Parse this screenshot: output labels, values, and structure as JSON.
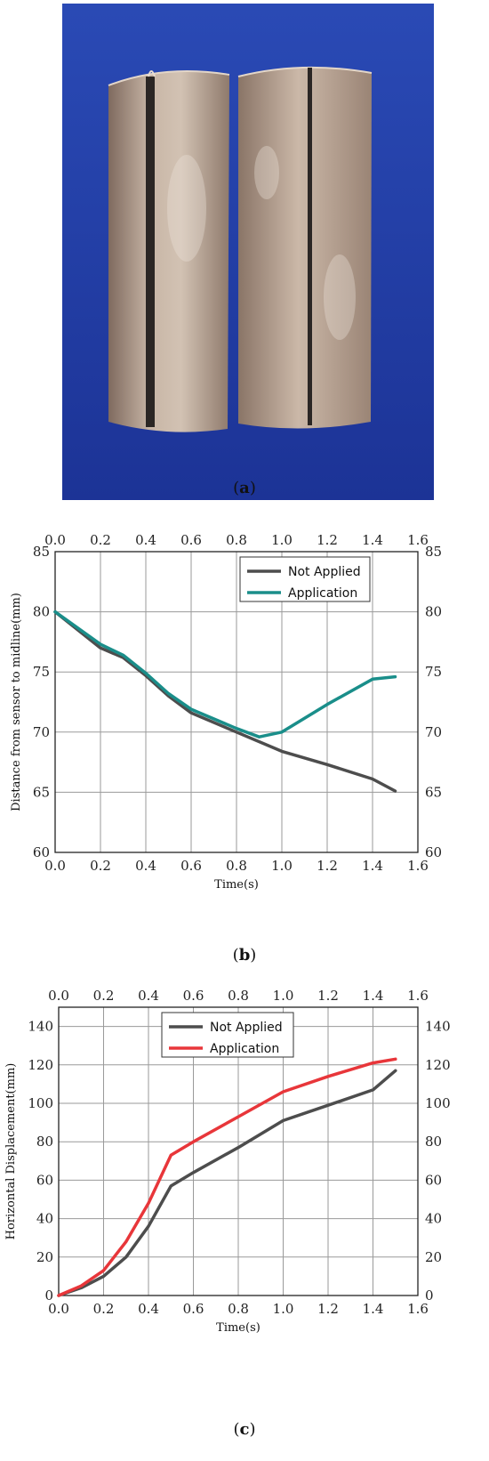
{
  "panels": {
    "a": {
      "caption_open": "(",
      "caption_letter": "a",
      "caption_close": ")"
    },
    "b": {
      "caption_open": "(",
      "caption_letter": "b",
      "caption_close": ")"
    },
    "c": {
      "caption_open": "(",
      "caption_letter": "c",
      "caption_close": ")"
    }
  },
  "colors": {
    "background_blue": "#1f3aa0",
    "pipe_metal": "#b9a596",
    "not_applied": "#4d4d4d",
    "application_b": "#1a8e8a",
    "application_c": "#e8363a"
  },
  "chart_data": [
    {
      "type": "line",
      "title": "",
      "xlabel": "Time(s)",
      "ylabel": "Distance from sensor to midline(mm)",
      "xlim": [
        0,
        1.6
      ],
      "ylim": [
        60,
        85
      ],
      "x_ticks": [
        "0.0",
        "0.2",
        "0.4",
        "0.6",
        "0.8",
        "1.0",
        "1.2",
        "1.4",
        "1.6"
      ],
      "y_ticks": [
        "60",
        "65",
        "70",
        "75",
        "80",
        "85"
      ],
      "grid": true,
      "legend_position": "top-right",
      "series": [
        {
          "name": "Not Applied",
          "color": "#4d4d4d",
          "x": [
            0,
            0.2,
            0.3,
            0.4,
            0.5,
            0.6,
            0.8,
            1.0,
            1.2,
            1.4,
            1.5
          ],
          "y": [
            80,
            77,
            76.2,
            74.7,
            73,
            71.6,
            70,
            68.4,
            67.3,
            66.1,
            65.1
          ]
        },
        {
          "name": "Application",
          "color": "#1a8e8a",
          "x": [
            0,
            0.2,
            0.3,
            0.4,
            0.5,
            0.6,
            0.8,
            0.9,
            1.0,
            1.2,
            1.4,
            1.5
          ],
          "y": [
            80,
            77.3,
            76.4,
            74.9,
            73.2,
            71.9,
            70.3,
            69.6,
            70,
            72.3,
            74.4,
            74.6
          ]
        }
      ]
    },
    {
      "type": "line",
      "title": "",
      "xlabel": "Time(s)",
      "ylabel": "Horizontal Displacement(mm)",
      "xlim": [
        0,
        1.6
      ],
      "ylim": [
        0,
        150
      ],
      "x_ticks": [
        "0.0",
        "0.2",
        "0.4",
        "0.6",
        "0.8",
        "1.0",
        "1.2",
        "1.4",
        "1.6"
      ],
      "y_ticks": [
        "0",
        "20",
        "40",
        "60",
        "80",
        "100",
        "120",
        "140"
      ],
      "grid": true,
      "legend_position": "top-center",
      "series": [
        {
          "name": "Not Applied",
          "color": "#4d4d4d",
          "x": [
            0,
            0.1,
            0.2,
            0.3,
            0.4,
            0.5,
            0.6,
            0.8,
            1.0,
            1.2,
            1.4,
            1.5
          ],
          "y": [
            0,
            4,
            10,
            20,
            36,
            57,
            64,
            77,
            91,
            99,
            107,
            117
          ]
        },
        {
          "name": "Application",
          "color": "#e8363a",
          "x": [
            0,
            0.1,
            0.2,
            0.3,
            0.4,
            0.5,
            0.6,
            0.8,
            1.0,
            1.2,
            1.4,
            1.5
          ],
          "y": [
            0,
            5,
            13,
            28,
            48,
            73,
            80,
            93,
            106,
            114,
            121,
            123
          ]
        }
      ]
    }
  ]
}
